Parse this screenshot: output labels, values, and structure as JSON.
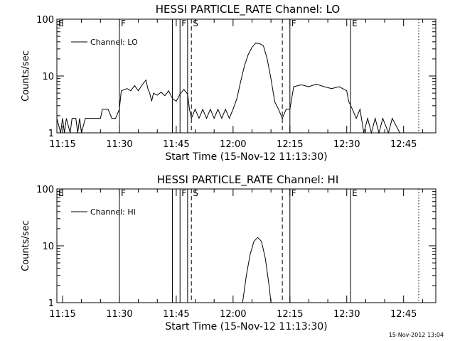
{
  "footer_timestamp": "15-Nov-2012 13:04",
  "chart_data": [
    {
      "type": "line",
      "title": "HESSI PARTICLE_RATE Channel: LO",
      "xlabel": "Start Time (15-Nov-12 11:13:30)",
      "ylabel": "Counts/sec",
      "yscale": "log",
      "xlim": [
        "11:13:30",
        "12:53:30"
      ],
      "ylim": [
        1,
        100
      ],
      "xticks": [
        "11:15",
        "11:30",
        "11:45",
        "12:00",
        "12:15",
        "12:30",
        "12:45"
      ],
      "yticks": [
        "1",
        "10",
        "100"
      ],
      "legend": {
        "placement": "top-left",
        "label": "Channel: LO"
      },
      "markers": [
        {
          "label": "E",
          "time": "11:13:30",
          "style": "none"
        },
        {
          "label": "F",
          "time": "11:30:00",
          "style": "solid"
        },
        {
          "label": "",
          "time": "11:44:00",
          "style": "solid"
        },
        {
          "label": "F",
          "time": "11:46:00",
          "style": "solid"
        },
        {
          "label": "",
          "time": "11:48:00",
          "style": "solid"
        },
        {
          "label": "S",
          "time": "11:49:00",
          "style": "dashed"
        },
        {
          "label": "",
          "time": "12:13:00",
          "style": "dashed"
        },
        {
          "label": "F",
          "time": "12:15:00",
          "style": "solid"
        },
        {
          "label": "E",
          "time": "12:31:00",
          "style": "solid"
        },
        {
          "label": "",
          "time": "12:49:00",
          "style": "dotted"
        }
      ],
      "series": [
        {
          "name": "Channel: LO",
          "points": [
            [
              "11:13:30",
              1.8
            ],
            [
              "11:14:30",
              1.0
            ],
            [
              "11:15:00",
              1.8
            ],
            [
              "11:15:30",
              1.0
            ],
            [
              "11:16:00",
              1.8
            ],
            [
              "11:17:00",
              1.0
            ],
            [
              "11:17:30",
              1.8
            ],
            [
              "11:18:30",
              1.8
            ],
            [
              "11:19:00",
              1.0
            ],
            [
              "11:19:30",
              1.8
            ],
            [
              "11:20:00",
              1.0
            ],
            [
              "11:21:00",
              1.8
            ],
            [
              "11:25:00",
              1.8
            ],
            [
              "11:25:30",
              2.6
            ],
            [
              "11:27:00",
              2.6
            ],
            [
              "11:28:00",
              1.8
            ],
            [
              "11:29:00",
              1.8
            ],
            [
              "11:30:00",
              2.6
            ],
            [
              "11:30:30",
              5.5
            ],
            [
              "11:32:00",
              6.0
            ],
            [
              "11:33:00",
              5.5
            ],
            [
              "11:34:00",
              6.8
            ],
            [
              "11:35:00",
              5.5
            ],
            [
              "11:36:00",
              7.0
            ],
            [
              "11:37:00",
              8.5
            ],
            [
              "11:37:30",
              6.0
            ],
            [
              "11:38:00",
              5.0
            ],
            [
              "11:38:30",
              3.6
            ],
            [
              "11:39:00",
              5.0
            ],
            [
              "11:40:00",
              4.6
            ],
            [
              "11:41:00",
              5.2
            ],
            [
              "11:42:00",
              4.5
            ],
            [
              "11:43:00",
              5.5
            ],
            [
              "11:44:00",
              4.0
            ],
            [
              "11:45:00",
              3.6
            ],
            [
              "11:46:00",
              4.8
            ],
            [
              "11:47:00",
              5.8
            ],
            [
              "11:48:00",
              4.8
            ],
            [
              "11:48:30",
              2.6
            ],
            [
              "11:49:00",
              1.8
            ],
            [
              "11:50:00",
              2.6
            ],
            [
              "11:51:00",
              1.8
            ],
            [
              "11:52:00",
              2.6
            ],
            [
              "11:53:00",
              1.8
            ],
            [
              "11:54:00",
              2.6
            ],
            [
              "11:55:00",
              1.8
            ],
            [
              "11:56:00",
              2.6
            ],
            [
              "11:57:00",
              1.8
            ],
            [
              "11:58:00",
              2.6
            ],
            [
              "11:59:00",
              1.8
            ],
            [
              "12:00:00",
              2.6
            ],
            [
              "12:01:00",
              4.0
            ],
            [
              "12:02:00",
              8.0
            ],
            [
              "12:03:00",
              15.0
            ],
            [
              "12:04:00",
              24.0
            ],
            [
              "12:05:00",
              32.0
            ],
            [
              "12:06:00",
              38.0
            ],
            [
              "12:07:00",
              37.0
            ],
            [
              "12:08:00",
              34.0
            ],
            [
              "12:09:00",
              20.0
            ],
            [
              "12:10:00",
              9.0
            ],
            [
              "12:11:00",
              3.5
            ],
            [
              "12:12:00",
              2.6
            ],
            [
              "12:13:00",
              1.8
            ],
            [
              "12:14:00",
              2.6
            ],
            [
              "12:15:00",
              2.6
            ],
            [
              "12:16:00",
              6.5
            ],
            [
              "12:18:00",
              7.0
            ],
            [
              "12:20:00",
              6.5
            ],
            [
              "12:22:00",
              7.2
            ],
            [
              "12:24:00",
              6.5
            ],
            [
              "12:26:00",
              6.0
            ],
            [
              "12:28:00",
              6.5
            ],
            [
              "12:30:00",
              5.5
            ],
            [
              "12:30:30",
              3.6
            ],
            [
              "12:31:30",
              2.6
            ],
            [
              "12:32:30",
              1.8
            ],
            [
              "12:33:30",
              2.6
            ],
            [
              "12:34:30",
              1.0
            ],
            [
              "12:35:30",
              1.8
            ],
            [
              "12:36:30",
              1.0
            ],
            [
              "12:37:30",
              1.8
            ],
            [
              "12:38:30",
              1.0
            ],
            [
              "12:39:30",
              1.8
            ],
            [
              "12:41:00",
              1.0
            ],
            [
              "12:42:00",
              1.8
            ],
            [
              "12:44:00",
              1.0
            ],
            [
              "12:46:00",
              1.0
            ],
            [
              "12:47:00",
              1.0
            ]
          ]
        }
      ]
    },
    {
      "type": "line",
      "title": "HESSI PARTICLE_RATE Channel: HI",
      "xlabel": "Start Time (15-Nov-12 11:13:30)",
      "ylabel": "Counts/sec",
      "yscale": "log",
      "xlim": [
        "11:13:30",
        "12:53:30"
      ],
      "ylim": [
        1,
        100
      ],
      "xticks": [
        "11:15",
        "11:30",
        "11:45",
        "12:00",
        "12:15",
        "12:30",
        "12:45"
      ],
      "yticks": [
        "1",
        "10",
        "100"
      ],
      "legend": {
        "placement": "top-left",
        "label": "Channel: HI"
      },
      "markers": [
        {
          "label": "E",
          "time": "11:13:30",
          "style": "none"
        },
        {
          "label": "F",
          "time": "11:30:00",
          "style": "solid"
        },
        {
          "label": "",
          "time": "11:44:00",
          "style": "solid"
        },
        {
          "label": "F",
          "time": "11:46:00",
          "style": "solid"
        },
        {
          "label": "",
          "time": "11:48:00",
          "style": "solid"
        },
        {
          "label": "S",
          "time": "11:49:00",
          "style": "dashed"
        },
        {
          "label": "",
          "time": "12:13:00",
          "style": "dashed"
        },
        {
          "label": "F",
          "time": "12:15:00",
          "style": "solid"
        },
        {
          "label": "E",
          "time": "12:31:00",
          "style": "solid"
        },
        {
          "label": "",
          "time": "12:49:00",
          "style": "dotted"
        }
      ],
      "series": [
        {
          "name": "Channel: HI",
          "points": [
            [
              "12:02:30",
              1.0
            ],
            [
              "12:03:30",
              3.0
            ],
            [
              "12:04:30",
              7.0
            ],
            [
              "12:05:30",
              12.0
            ],
            [
              "12:06:30",
              14.0
            ],
            [
              "12:07:30",
              12.0
            ],
            [
              "12:08:30",
              6.0
            ],
            [
              "12:09:30",
              2.0
            ],
            [
              "12:10:00",
              1.0
            ]
          ]
        }
      ]
    }
  ]
}
